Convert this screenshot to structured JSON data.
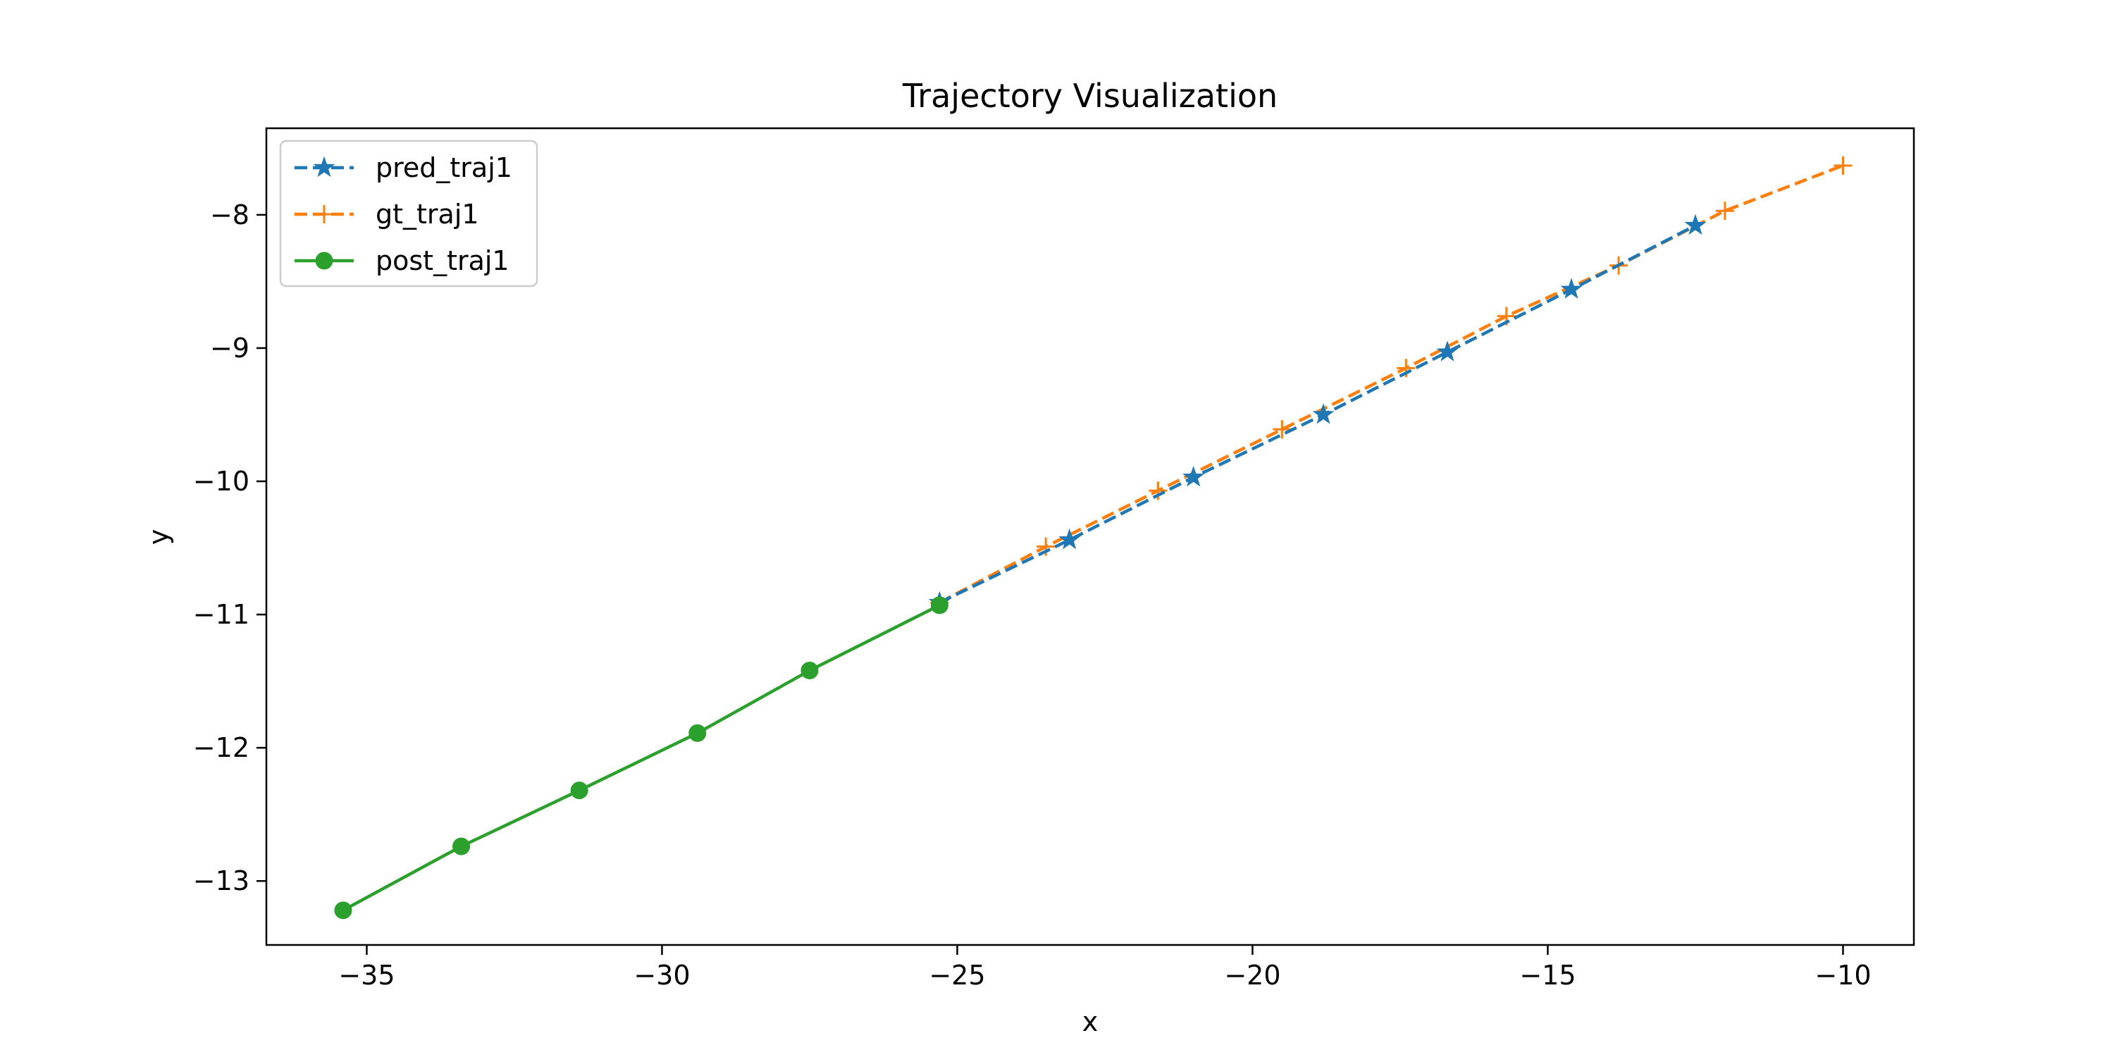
{
  "chart_data": {
    "type": "line",
    "title": "Trajectory Visualization",
    "xlabel": "x",
    "ylabel": "y",
    "xlim": [
      -36.7,
      -8.8
    ],
    "ylim": [
      -13.48,
      -7.35
    ],
    "grid": false,
    "legend_position": "top-left",
    "xticks": [
      {
        "value": -35,
        "label": "−35"
      },
      {
        "value": -30,
        "label": "−30"
      },
      {
        "value": -25,
        "label": "−25"
      },
      {
        "value": -20,
        "label": "−20"
      },
      {
        "value": -15,
        "label": "−15"
      },
      {
        "value": -10,
        "label": "−10"
      }
    ],
    "yticks": [
      {
        "value": -13,
        "label": "−13"
      },
      {
        "value": -12,
        "label": "−12"
      },
      {
        "value": -11,
        "label": "−11"
      },
      {
        "value": -10,
        "label": "−10"
      },
      {
        "value": -9,
        "label": "−9"
      },
      {
        "value": -8,
        "label": "−8"
      }
    ],
    "series": [
      {
        "name": "pred_traj1",
        "color": "#1f77b4",
        "linestyle": "dashed",
        "marker": "star",
        "x": [
          -25.3,
          -23.1,
          -21.0,
          -18.8,
          -16.7,
          -14.6,
          -12.5
        ],
        "y": [
          -10.91,
          -10.44,
          -9.97,
          -9.5,
          -9.03,
          -8.56,
          -8.08
        ]
      },
      {
        "name": "gt_traj1",
        "color": "#ff7f0e",
        "linestyle": "dashed",
        "marker": "plus",
        "x": [
          -25.3,
          -23.5,
          -21.6,
          -19.5,
          -17.4,
          -15.7,
          -13.8,
          -12.0,
          -10.0
        ],
        "y": [
          -10.91,
          -10.49,
          -10.07,
          -9.61,
          -9.15,
          -8.76,
          -8.38,
          -7.97,
          -7.63
        ]
      },
      {
        "name": "post_traj1",
        "color": "#2ca02c",
        "linestyle": "solid",
        "marker": "circle",
        "x": [
          -35.4,
          -33.4,
          -31.4,
          -29.4,
          -27.5,
          -25.3
        ],
        "y": [
          -13.22,
          -12.74,
          -12.32,
          -11.89,
          -11.42,
          -10.93
        ]
      }
    ]
  }
}
